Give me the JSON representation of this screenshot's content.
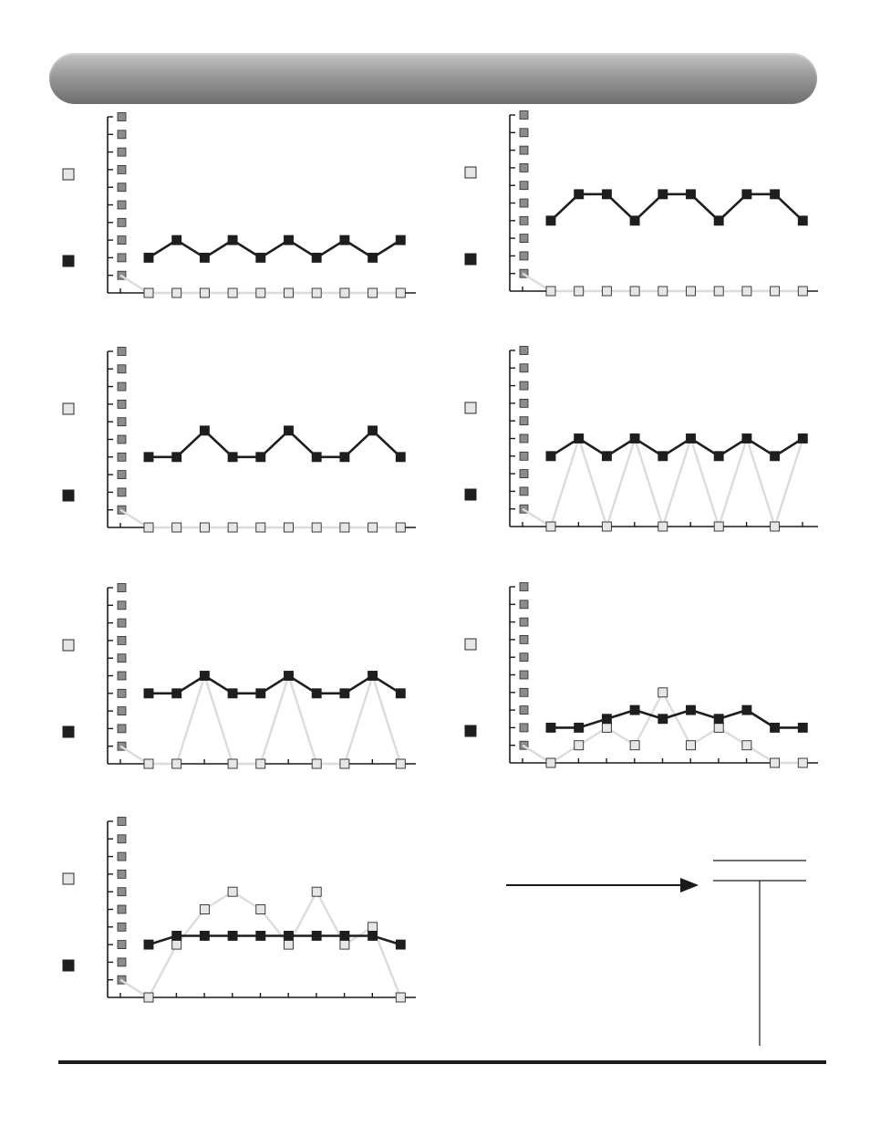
{
  "page": {
    "header_title": "",
    "footer_text": ""
  },
  "colors": {
    "dark_series": "#1e1e1e",
    "light_series": "#dcdcdc",
    "light_marker": "#e6e6e6",
    "axis_marker": "#8c8c8c",
    "axis": "#1a1a1a"
  },
  "chart_data": [
    {
      "type": "line",
      "title": "",
      "xlabel": "",
      "ylabel": "",
      "x": [
        1,
        2,
        3,
        4,
        5,
        6,
        7,
        8,
        9,
        10
      ],
      "xlim": [
        0,
        11
      ],
      "ylim": [
        0,
        10
      ],
      "y_markers": [
        1,
        2,
        3,
        4,
        5,
        6,
        7,
        8,
        9,
        10
      ],
      "grid": false,
      "legend": "left",
      "series": [
        {
          "name": "",
          "style": "light",
          "values": [
            0,
            0,
            0,
            0,
            0,
            0,
            0,
            0,
            0,
            0
          ]
        },
        {
          "name": "",
          "style": "dark",
          "values": [
            2,
            3,
            2,
            3,
            2,
            3,
            2,
            3,
            2,
            3
          ]
        }
      ]
    },
    {
      "type": "line",
      "title": "",
      "xlabel": "",
      "ylabel": "",
      "x": [
        1,
        2,
        3,
        4,
        5,
        6,
        7,
        8,
        9,
        10
      ],
      "xlim": [
        0,
        11
      ],
      "ylim": [
        0,
        10
      ],
      "y_markers": [
        1,
        2,
        3,
        4,
        5,
        6,
        7,
        8,
        9,
        10
      ],
      "grid": false,
      "legend": "left",
      "series": [
        {
          "name": "",
          "style": "light",
          "values": [
            0,
            0,
            0,
            0,
            0,
            0,
            0,
            0,
            0,
            0
          ]
        },
        {
          "name": "",
          "style": "dark",
          "values": [
            4,
            5.5,
            5.5,
            4,
            5.5,
            5.5,
            4,
            5.5,
            5.5,
            4
          ]
        }
      ]
    },
    {
      "type": "line",
      "title": "",
      "xlabel": "",
      "ylabel": "",
      "x": [
        1,
        2,
        3,
        4,
        5,
        6,
        7,
        8,
        9,
        10
      ],
      "xlim": [
        0,
        11
      ],
      "ylim": [
        0,
        10
      ],
      "y_markers": [
        1,
        2,
        3,
        4,
        5,
        6,
        7,
        8,
        9,
        10
      ],
      "grid": false,
      "legend": "left",
      "series": [
        {
          "name": "",
          "style": "light",
          "values": [
            0,
            0,
            0,
            0,
            0,
            0,
            0,
            0,
            0,
            0
          ]
        },
        {
          "name": "",
          "style": "dark",
          "values": [
            4,
            4,
            5.5,
            4,
            4,
            5.5,
            4,
            4,
            5.5,
            4
          ]
        }
      ]
    },
    {
      "type": "line",
      "title": "",
      "xlabel": "",
      "ylabel": "",
      "x": [
        1,
        2,
        3,
        4,
        5,
        6,
        7,
        8,
        9,
        10
      ],
      "xlim": [
        0,
        11
      ],
      "ylim": [
        0,
        10
      ],
      "y_markers": [
        1,
        2,
        3,
        4,
        5,
        6,
        7,
        8,
        9,
        10
      ],
      "grid": false,
      "legend": "left",
      "series": [
        {
          "name": "",
          "style": "light",
          "values": [
            0,
            5,
            0,
            5,
            0,
            5,
            0,
            5,
            0,
            5
          ],
          "marker_mask": [
            1,
            0,
            1,
            0,
            1,
            0,
            1,
            0,
            1,
            0
          ]
        },
        {
          "name": "",
          "style": "dark",
          "values": [
            4,
            5,
            4,
            5,
            4,
            5,
            4,
            5,
            4,
            5
          ]
        }
      ]
    },
    {
      "type": "line",
      "title": "",
      "xlabel": "",
      "ylabel": "",
      "x": [
        1,
        2,
        3,
        4,
        5,
        6,
        7,
        8,
        9,
        10
      ],
      "xlim": [
        0,
        11
      ],
      "ylim": [
        0,
        10
      ],
      "y_markers": [
        1,
        2,
        3,
        4,
        5,
        6,
        7,
        8,
        9,
        10
      ],
      "grid": false,
      "legend": "left",
      "series": [
        {
          "name": "",
          "style": "light",
          "values": [
            0,
            0,
            5,
            0,
            0,
            5,
            0,
            0,
            5,
            0
          ],
          "marker_mask": [
            1,
            1,
            0,
            1,
            1,
            0,
            1,
            1,
            0,
            1
          ]
        },
        {
          "name": "",
          "style": "dark",
          "values": [
            4,
            4,
            5,
            4,
            4,
            5,
            4,
            4,
            5,
            4
          ]
        }
      ]
    },
    {
      "type": "line",
      "title": "",
      "xlabel": "",
      "ylabel": "",
      "x": [
        1,
        2,
        3,
        4,
        5,
        6,
        7,
        8,
        9,
        10
      ],
      "xlim": [
        0,
        11
      ],
      "ylim": [
        0,
        10
      ],
      "y_markers": [
        1,
        2,
        3,
        4,
        5,
        6,
        7,
        8,
        9,
        10
      ],
      "grid": false,
      "legend": "left",
      "series": [
        {
          "name": "",
          "style": "light",
          "values": [
            0,
            1,
            2,
            1,
            4,
            1,
            2,
            1,
            0,
            0
          ]
        },
        {
          "name": "",
          "style": "dark",
          "values": [
            2,
            2,
            2.5,
            3,
            2.5,
            3,
            2.5,
            3,
            2,
            2
          ]
        }
      ]
    },
    {
      "type": "line",
      "title": "",
      "xlabel": "",
      "ylabel": "",
      "x": [
        1,
        2,
        3,
        4,
        5,
        6,
        7,
        8,
        9,
        10
      ],
      "xlim": [
        0,
        11
      ],
      "ylim": [
        0,
        10
      ],
      "y_markers": [
        1,
        2,
        3,
        4,
        5,
        6,
        7,
        8,
        9,
        10
      ],
      "grid": false,
      "legend": "left",
      "series": [
        {
          "name": "",
          "style": "light",
          "values": [
            0,
            3,
            5,
            6,
            5,
            3,
            6,
            3,
            4,
            0
          ]
        },
        {
          "name": "",
          "style": "dark",
          "values": [
            3,
            3.5,
            3.5,
            3.5,
            3.5,
            3.5,
            3.5,
            3.5,
            3.5,
            3
          ]
        }
      ]
    }
  ]
}
